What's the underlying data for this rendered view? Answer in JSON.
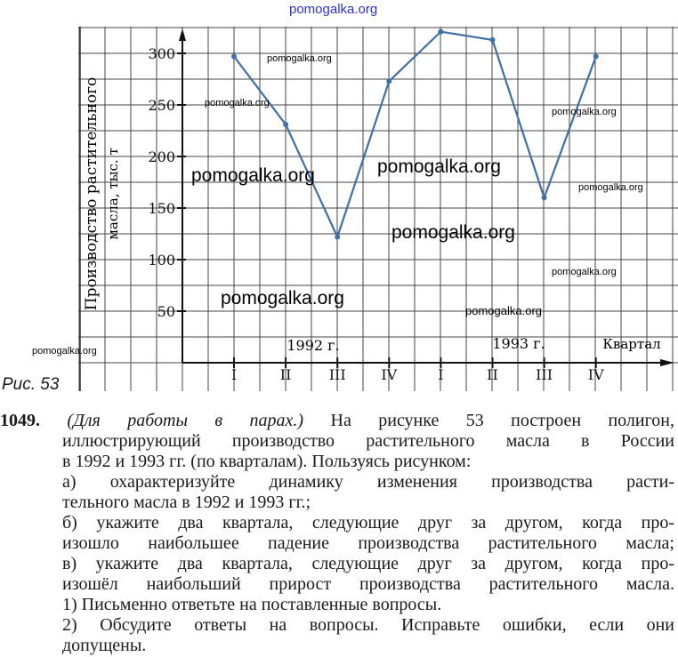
{
  "chart_data": {
    "type": "line",
    "ylabel_line1": "Производство растительного",
    "ylabel_line2": "масла, тыс. т",
    "xlabel": "Квартал",
    "categories": [
      "I",
      "II",
      "III",
      "IV",
      "I",
      "II",
      "III",
      "IV"
    ],
    "year_labels": [
      "1992 г.",
      "1993 г."
    ],
    "y_ticks": [
      50,
      100,
      150,
      200,
      250,
      300
    ],
    "ylim": [
      0,
      320
    ],
    "grid": true,
    "line_color": "#3f6fa3",
    "series": [
      {
        "values": [
          297,
          231,
          122,
          273,
          321,
          313,
          160,
          297
        ]
      }
    ]
  },
  "figure_label": "Рис. 53",
  "exercise": {
    "number": "1049.",
    "lead_italic": "(Для работы в парах.)",
    "lines": [
      "На рисунке 53 построен полигон,",
      "иллюстрирующий производство растительного масла в России",
      "в 1992 и 1993 гг. (по кварталам). Пользуясь рисунком:",
      "а) охарактеризуйте динамику изменения производства расти-",
      "тельного масла в 1992 и 1993 гг.;",
      "б) укажите два квартала, следующие друг за другом, когда про-",
      "изошло наибольшее падение производства растительного масла;",
      "в) укажите два квартала, следующие друг за другом, когда про-",
      "изошёл наибольший прирост производства растительного масла.",
      "1) Письменно ответьте на поставленные вопросы.",
      "2) Обсудите ответы на вопросы. Исправьте ошибки, если они",
      "допущены."
    ]
  },
  "watermark": "pomogalka.org"
}
